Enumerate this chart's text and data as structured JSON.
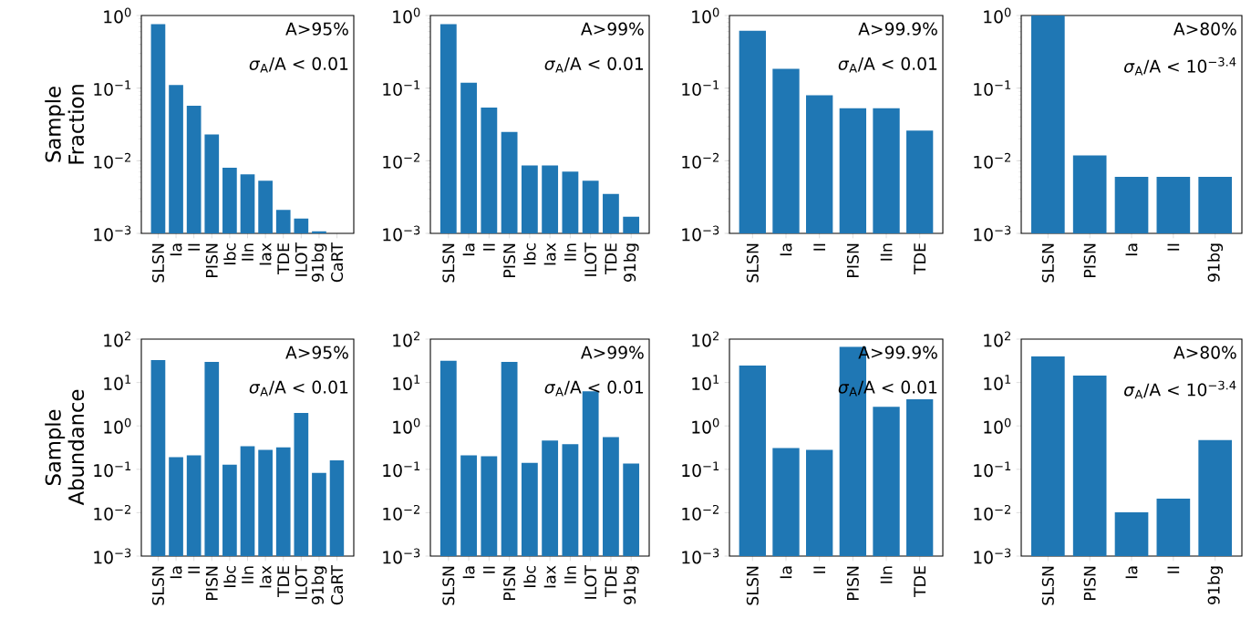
{
  "chart_data": [
    {
      "type": "bar",
      "ylabel": "Sample Fraction",
      "categories": [
        "SLSN",
        "Ia",
        "II",
        "PISN",
        "Ibc",
        "IIn",
        "Iax",
        "TDE",
        "ILOT",
        "91bg",
        "CaRT"
      ],
      "values": [
        0.76,
        0.11,
        0.057,
        0.023,
        0.008,
        0.0065,
        0.0053,
        0.0021,
        0.0016,
        0.00107,
        null
      ],
      "color": "#1f77b4",
      "log": "y",
      "ylim": [
        0.001,
        1
      ],
      "yticks": [
        {
          "value": 0.001,
          "label": "10$^{−3}$"
        },
        {
          "value": 0.01,
          "label": "10$^{−2}$"
        },
        {
          "value": 0.1,
          "label": "10$^{−1}$"
        },
        {
          "value": 1,
          "label": "10$^{0}$"
        }
      ],
      "annotations": [
        "A>95%",
        "*σ*$_{A}$/A < 0.01"
      ]
    },
    {
      "type": "bar",
      "categories": [
        "SLSN",
        "Ia",
        "II",
        "PISN",
        "Ibc",
        "Iax",
        "IIn",
        "ILOT",
        "TDE",
        "91bg"
      ],
      "values": [
        0.76,
        0.119,
        0.054,
        0.025,
        0.0086,
        0.0086,
        0.0071,
        0.0053,
        0.0035,
        0.0017
      ],
      "color": "#1f77b4",
      "log": "y",
      "ylim": [
        0.001,
        1
      ],
      "yticks": [
        {
          "value": 0.001,
          "label": "10$^{−3}$"
        },
        {
          "value": 0.01,
          "label": "10$^{−2}$"
        },
        {
          "value": 0.1,
          "label": "10$^{−1}$"
        },
        {
          "value": 1,
          "label": "10$^{0}$"
        }
      ],
      "annotations": [
        "A>99%",
        "*σ*$_{A}$/A < 0.01"
      ]
    },
    {
      "type": "bar",
      "categories": [
        "SLSN",
        "Ia",
        "II",
        "PISN",
        "IIn",
        "TDE"
      ],
      "values": [
        0.62,
        0.185,
        0.08,
        0.053,
        0.053,
        0.026
      ],
      "color": "#1f77b4",
      "log": "y",
      "ylim": [
        0.001,
        1
      ],
      "yticks": [
        {
          "value": 0.001,
          "label": "10$^{−3}$"
        },
        {
          "value": 0.01,
          "label": "10$^{−2}$"
        },
        {
          "value": 0.1,
          "label": "10$^{−1}$"
        },
        {
          "value": 1,
          "label": "10$^{0}$"
        }
      ],
      "annotations": [
        "A>99.9%",
        "*σ*$_{A}$/A < 0.01"
      ]
    },
    {
      "type": "bar",
      "categories": [
        "SLSN",
        "PISN",
        "Ia",
        "II",
        "91bg"
      ],
      "values": [
        1.0,
        0.0118,
        0.006,
        0.006,
        0.006
      ],
      "color": "#1f77b4",
      "log": "y",
      "ylim": [
        0.001,
        1
      ],
      "yticks": [
        {
          "value": 0.001,
          "label": "10$^{−3}$"
        },
        {
          "value": 0.01,
          "label": "10$^{−2}$"
        },
        {
          "value": 0.1,
          "label": "10$^{−1}$"
        },
        {
          "value": 1,
          "label": "10$^{0}$"
        }
      ],
      "annotations": [
        "A>80%",
        "*σ*$_{A}$/A < 10$^{−3.4}$"
      ]
    },
    {
      "type": "bar",
      "ylabel": "Sample Abundance",
      "categories": [
        "SLSN",
        "Ia",
        "II",
        "PISN",
        "Ibc",
        "IIn",
        "Iax",
        "TDE",
        "ILOT",
        "91bg",
        "CaRT"
      ],
      "values": [
        33,
        0.19,
        0.21,
        30,
        0.128,
        0.34,
        0.28,
        0.32,
        2.0,
        0.083,
        0.16
      ],
      "color": "#1f77b4",
      "log": "y",
      "ylim": [
        0.001,
        100
      ],
      "yticks": [
        {
          "value": 0.001,
          "label": "10$^{−3}$"
        },
        {
          "value": 0.01,
          "label": "10$^{−2}$"
        },
        {
          "value": 0.1,
          "label": "10$^{−1}$"
        },
        {
          "value": 1,
          "label": "10$^{0}$"
        },
        {
          "value": 10,
          "label": "10$^{1}$"
        },
        {
          "value": 100,
          "label": "10$^{2}$"
        }
      ],
      "annotations": [
        "A>95%",
        "*σ*$_{A}$/A < 0.01"
      ]
    },
    {
      "type": "bar",
      "categories": [
        "SLSN",
        "Ia",
        "II",
        "PISN",
        "Ibc",
        "Iax",
        "IIn",
        "ILOT",
        "TDE",
        "91bg"
      ],
      "values": [
        31.6,
        0.21,
        0.2,
        30,
        0.14,
        0.46,
        0.38,
        6.3,
        0.55,
        0.135
      ],
      "color": "#1f77b4",
      "log": "y",
      "ylim": [
        0.001,
        100
      ],
      "yticks": [
        {
          "value": 0.001,
          "label": "10$^{−3}$"
        },
        {
          "value": 0.01,
          "label": "10$^{−2}$"
        },
        {
          "value": 0.1,
          "label": "10$^{−1}$"
        },
        {
          "value": 1,
          "label": "10$^{0}$"
        },
        {
          "value": 10,
          "label": "10$^{1}$"
        },
        {
          "value": 100,
          "label": "10$^{2}$"
        }
      ],
      "annotations": [
        "A>99%",
        "*σ*$_{A}$/A < 0.01"
      ]
    },
    {
      "type": "bar",
      "categories": [
        "SLSN",
        "Ia",
        "II",
        "PISN",
        "IIn",
        "TDE"
      ],
      "values": [
        24.6,
        0.31,
        0.28,
        66,
        2.75,
        4.1
      ],
      "color": "#1f77b4",
      "log": "y",
      "ylim": [
        0.001,
        100
      ],
      "yticks": [
        {
          "value": 0.001,
          "label": "10$^{−3}$"
        },
        {
          "value": 0.01,
          "label": "10$^{−2}$"
        },
        {
          "value": 0.1,
          "label": "10$^{−1}$"
        },
        {
          "value": 1,
          "label": "10$^{0}$"
        },
        {
          "value": 10,
          "label": "10$^{1}$"
        },
        {
          "value": 100,
          "label": "10$^{2}$"
        }
      ],
      "annotations": [
        "A>99.9%",
        "*σ*$_{A}$/A < 0.01"
      ]
    },
    {
      "type": "bar",
      "categories": [
        "SLSN",
        "PISN",
        "Ia",
        "II",
        "91bg"
      ],
      "values": [
        40,
        14.4,
        0.0102,
        0.021,
        0.47
      ],
      "color": "#1f77b4",
      "log": "y",
      "ylim": [
        0.001,
        100
      ],
      "yticks": [
        {
          "value": 0.001,
          "label": "10$^{−3}$"
        },
        {
          "value": 0.01,
          "label": "10$^{−2}$"
        },
        {
          "value": 0.1,
          "label": "10$^{−1}$"
        },
        {
          "value": 1,
          "label": "10$^{0}$"
        },
        {
          "value": 10,
          "label": "10$^{1}$"
        },
        {
          "value": 100,
          "label": "10$^{2}$"
        }
      ],
      "annotations": [
        "A>80%",
        "*σ*$_{A}$/A < 10$^{−3.4}$"
      ]
    }
  ]
}
